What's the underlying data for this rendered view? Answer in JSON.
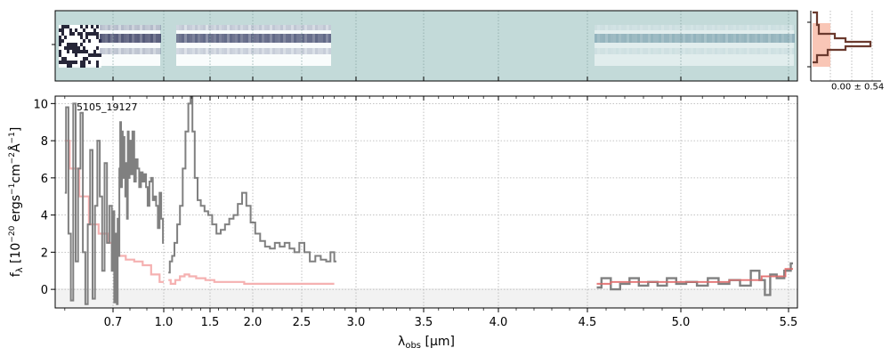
{
  "chart_data": {
    "type": "line",
    "object_id": "5105_19127",
    "xlabel": "λ_obs [μm]",
    "ylabel": "f_λ [10^-20 ergs^-1cm^-2Å^-1]",
    "xticks": [
      "0.7",
      "1.0",
      "1.5",
      "2.0",
      "2.5",
      "3.0",
      "3.5",
      "4.0",
      "4.5",
      "5.0",
      "5.5"
    ],
    "xtick_values": [
      0.7,
      1.0,
      1.5,
      2.0,
      2.5,
      3.0,
      3.5,
      4.0,
      4.5,
      5.0,
      5.5
    ],
    "yticks": [
      "0",
      "2",
      "4",
      "6",
      "8",
      "10"
    ],
    "ylim": [
      -1.0,
      10.4
    ],
    "grid": true,
    "profile_annotation": "0.00 ± 0.54",
    "colors": {
      "data": "#808080",
      "model": "#f4a8a8",
      "model_red": "#e06b6b",
      "twod_bg": "#c3dad9",
      "profile_fill": "#f9c6b6",
      "profile_line": "#6b3a2e"
    },
    "series": [
      {
        "role": "observed",
        "segments": [
          [
            [
              0.6,
              5.2
            ],
            [
              0.605,
              9.8
            ],
            [
              0.61,
              3.0
            ],
            [
              0.615,
              -0.6
            ],
            [
              0.62,
              10.0
            ],
            [
              0.625,
              1.5
            ],
            [
              0.63,
              6.5
            ],
            [
              0.635,
              9.5
            ],
            [
              0.64,
              2.0
            ],
            [
              0.645,
              -0.8
            ],
            [
              0.65,
              3.5
            ],
            [
              0.655,
              7.5
            ],
            [
              0.66,
              -0.5
            ],
            [
              0.665,
              4.5
            ],
            [
              0.67,
              8.0
            ],
            [
              0.675,
              5.0
            ],
            [
              0.68,
              1.0
            ],
            [
              0.685,
              6.8
            ],
            [
              0.69,
              2.5
            ],
            [
              0.695,
              4.5
            ],
            [
              0.7,
              1.0
            ],
            [
              0.705,
              4.2
            ],
            [
              0.71,
              -0.7
            ],
            [
              0.715,
              1.5
            ],
            [
              0.72,
              3.0
            ],
            [
              0.725,
              -0.8
            ],
            [
              0.73,
              3.8
            ],
            [
              0.735,
              1.8
            ],
            [
              0.74,
              6.5
            ],
            [
              0.745,
              9.0
            ],
            [
              0.75,
              5.5
            ],
            [
              0.755,
              8.5
            ],
            [
              0.76,
              6.0
            ],
            [
              0.765,
              8.2
            ],
            [
              0.77,
              6.2
            ],
            [
              0.775,
              5.0
            ],
            [
              0.78,
              6.8
            ],
            [
              0.785,
              3.8
            ],
            [
              0.79,
              8.5
            ],
            [
              0.795,
              6.0
            ],
            [
              0.8,
              8.0
            ],
            [
              0.81,
              6.2
            ],
            [
              0.82,
              8.5
            ],
            [
              0.83,
              5.8
            ],
            [
              0.84,
              7.0
            ],
            [
              0.85,
              6.5
            ],
            [
              0.86,
              5.5
            ],
            [
              0.87,
              6.3
            ],
            [
              0.88,
              5.8
            ],
            [
              0.89,
              6.2
            ],
            [
              0.9,
              5.5
            ],
            [
              0.91,
              4.5
            ],
            [
              0.92,
              5.8
            ],
            [
              0.93,
              6.0
            ],
            [
              0.94,
              4.8
            ],
            [
              0.95,
              5.0
            ],
            [
              0.96,
              4.5
            ],
            [
              0.97,
              3.3
            ],
            [
              0.98,
              5.2
            ],
            [
              0.99,
              3.8
            ],
            [
              1.0,
              2.5
            ]
          ],
          [
            [
              1.05,
              0.9
            ],
            [
              1.08,
              1.5
            ],
            [
              1.1,
              1.8
            ],
            [
              1.13,
              2.5
            ],
            [
              1.16,
              3.5
            ],
            [
              1.19,
              4.5
            ],
            [
              1.22,
              6.5
            ],
            [
              1.25,
              8.5
            ],
            [
              1.28,
              10.0
            ],
            [
              1.3,
              10.5
            ],
            [
              1.32,
              8.5
            ],
            [
              1.35,
              6.0
            ],
            [
              1.38,
              4.8
            ],
            [
              1.42,
              4.5
            ],
            [
              1.46,
              4.2
            ],
            [
              1.5,
              4.0
            ],
            [
              1.55,
              3.5
            ],
            [
              1.6,
              3.0
            ],
            [
              1.65,
              3.2
            ],
            [
              1.7,
              3.5
            ],
            [
              1.75,
              3.8
            ],
            [
              1.8,
              4.0
            ],
            [
              1.85,
              4.6
            ],
            [
              1.9,
              5.2
            ],
            [
              1.95,
              4.5
            ],
            [
              2.0,
              3.6
            ],
            [
              2.05,
              3.0
            ],
            [
              2.1,
              2.6
            ],
            [
              2.15,
              2.3
            ],
            [
              2.2,
              2.2
            ],
            [
              2.25,
              2.5
            ],
            [
              2.3,
              2.3
            ],
            [
              2.35,
              2.5
            ],
            [
              2.4,
              2.2
            ],
            [
              2.45,
              2.0
            ],
            [
              2.5,
              2.5
            ],
            [
              2.55,
              2.0
            ],
            [
              2.6,
              1.5
            ],
            [
              2.65,
              1.8
            ],
            [
              2.7,
              1.6
            ],
            [
              2.75,
              1.5
            ],
            [
              2.78,
              2.0
            ],
            [
              2.82,
              1.5
            ]
          ]
        ]
      },
      {
        "role": "observed_red",
        "segments": [
          [
            [
              4.55,
              0.1
            ],
            [
              4.6,
              0.6
            ],
            [
              4.65,
              0.0
            ],
            [
              4.7,
              0.3
            ],
            [
              4.75,
              0.6
            ],
            [
              4.8,
              0.2
            ],
            [
              4.85,
              0.4
            ],
            [
              4.9,
              0.2
            ],
            [
              4.95,
              0.6
            ],
            [
              5.0,
              0.3
            ],
            [
              5.05,
              0.4
            ],
            [
              5.1,
              0.2
            ],
            [
              5.15,
              0.6
            ],
            [
              5.2,
              0.3
            ],
            [
              5.25,
              0.5
            ],
            [
              5.3,
              0.2
            ],
            [
              5.35,
              1.0
            ],
            [
              5.38,
              0.5
            ],
            [
              5.4,
              -0.3
            ],
            [
              5.43,
              0.8
            ],
            [
              5.46,
              0.6
            ],
            [
              5.5,
              1.0
            ],
            [
              5.53,
              1.4
            ]
          ]
        ]
      },
      {
        "role": "model",
        "segments": [
          [
            [
              0.6,
              8.0
            ],
            [
              0.62,
              6.5
            ],
            [
              0.64,
              5.0
            ],
            [
              0.66,
              3.5
            ],
            [
              0.68,
              3.0
            ],
            [
              0.7,
              2.5
            ],
            [
              0.72,
              2.1
            ],
            [
              0.75,
              1.8
            ],
            [
              0.8,
              1.6
            ],
            [
              0.85,
              1.5
            ],
            [
              0.9,
              1.3
            ],
            [
              0.95,
              0.8
            ],
            [
              1.0,
              0.4
            ]
          ],
          [
            [
              1.05,
              0.5
            ],
            [
              1.1,
              0.3
            ],
            [
              1.15,
              0.5
            ],
            [
              1.2,
              0.7
            ],
            [
              1.25,
              0.8
            ],
            [
              1.3,
              0.7
            ],
            [
              1.4,
              0.6
            ],
            [
              1.5,
              0.5
            ],
            [
              1.6,
              0.4
            ],
            [
              1.8,
              0.4
            ],
            [
              2.0,
              0.3
            ],
            [
              2.2,
              0.3
            ],
            [
              2.4,
              0.3
            ],
            [
              2.6,
              0.3
            ],
            [
              2.8,
              0.3
            ]
          ],
          [
            [
              4.55,
              0.3
            ],
            [
              4.7,
              0.4
            ],
            [
              4.85,
              0.4
            ],
            [
              5.0,
              0.4
            ],
            [
              5.15,
              0.4
            ],
            [
              5.3,
              0.5
            ],
            [
              5.45,
              0.7
            ],
            [
              5.53,
              1.1
            ]
          ]
        ]
      }
    ]
  }
}
